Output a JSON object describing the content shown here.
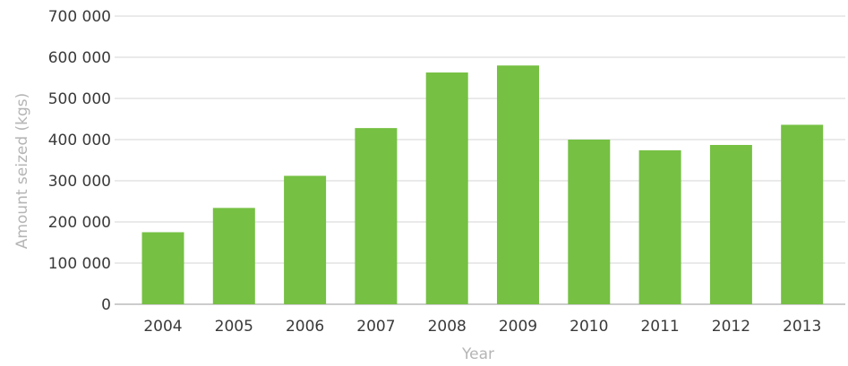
{
  "chart_data": {
    "type": "bar",
    "title": "",
    "xlabel": "Year",
    "ylabel": "Amount seized (kgs)",
    "categories": [
      "2004",
      "2005",
      "2006",
      "2007",
      "2008",
      "2009",
      "2010",
      "2011",
      "2012",
      "2013"
    ],
    "values": [
      175000,
      234000,
      312000,
      428000,
      563000,
      580000,
      400000,
      374000,
      387000,
      436000
    ],
    "ylim": [
      0,
      700000
    ],
    "yticks": [
      0,
      100000,
      200000,
      300000,
      400000,
      500000,
      600000,
      700000
    ],
    "ytick_labels": [
      "0",
      "100 000",
      "200 000",
      "300 000",
      "400 000",
      "500 000",
      "600 000",
      "700 000"
    ],
    "grid": true,
    "legend": "none",
    "bar_color": "#76c043"
  }
}
